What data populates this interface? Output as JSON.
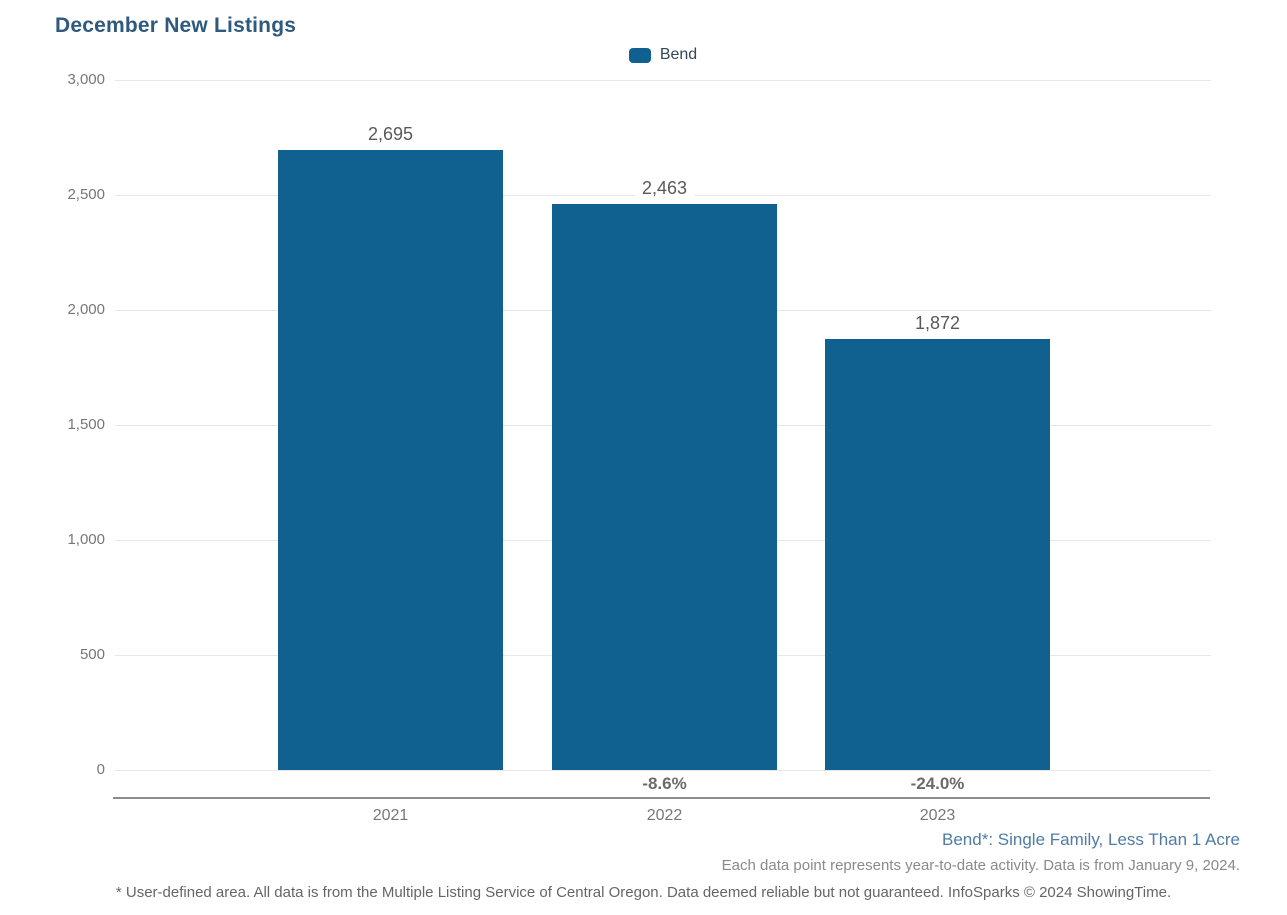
{
  "title": "December New Listings",
  "legend": {
    "label": "Bend",
    "swatch_color": "#116190"
  },
  "chart_data": {
    "type": "bar",
    "title": "December New Listings",
    "series_name": "Bend",
    "categories": [
      "2021",
      "2022",
      "2023"
    ],
    "values": [
      2695,
      2463,
      1872
    ],
    "value_labels": [
      "2,695",
      "2,463",
      "1,872"
    ],
    "pct_change_labels": [
      "",
      "-8.6%",
      "-24.0%"
    ],
    "xlabel": "",
    "ylabel": "",
    "ylim": [
      0,
      3000
    ],
    "ytick_interval": 500,
    "ytick_labels": [
      "0",
      "500",
      "1,000",
      "1,500",
      "2,000",
      "2,500",
      "3,000"
    ],
    "grid": true,
    "legend_position": "top-center",
    "bar_color": "#116190"
  },
  "footer": {
    "series_note": "Bend*: Single Family, Less Than 1 Acre",
    "data_note": "Each data point represents year-to-date activity. Data is from January 9, 2024.",
    "disclaimer": "* User-defined area. All data is from the Multiple Listing Service of Central Oregon. Data deemed reliable but not guaranteed. InfoSparks © 2024 ShowingTime."
  },
  "colors": {
    "title_text": "#2E5A80",
    "bar": "#116190",
    "gridline": "#E7E7E7",
    "axis_line": "#8C8C8C",
    "ytick_text": "#777777",
    "value_label_text": "#595959",
    "pct_label_text": "#6B6B6B",
    "cat_label_text": "#777777",
    "legend_text": "#33475A",
    "footer_blue": "#4E7CA8",
    "footer_gray": "#8A8A8A",
    "disclaimer_gray": "#666666"
  }
}
